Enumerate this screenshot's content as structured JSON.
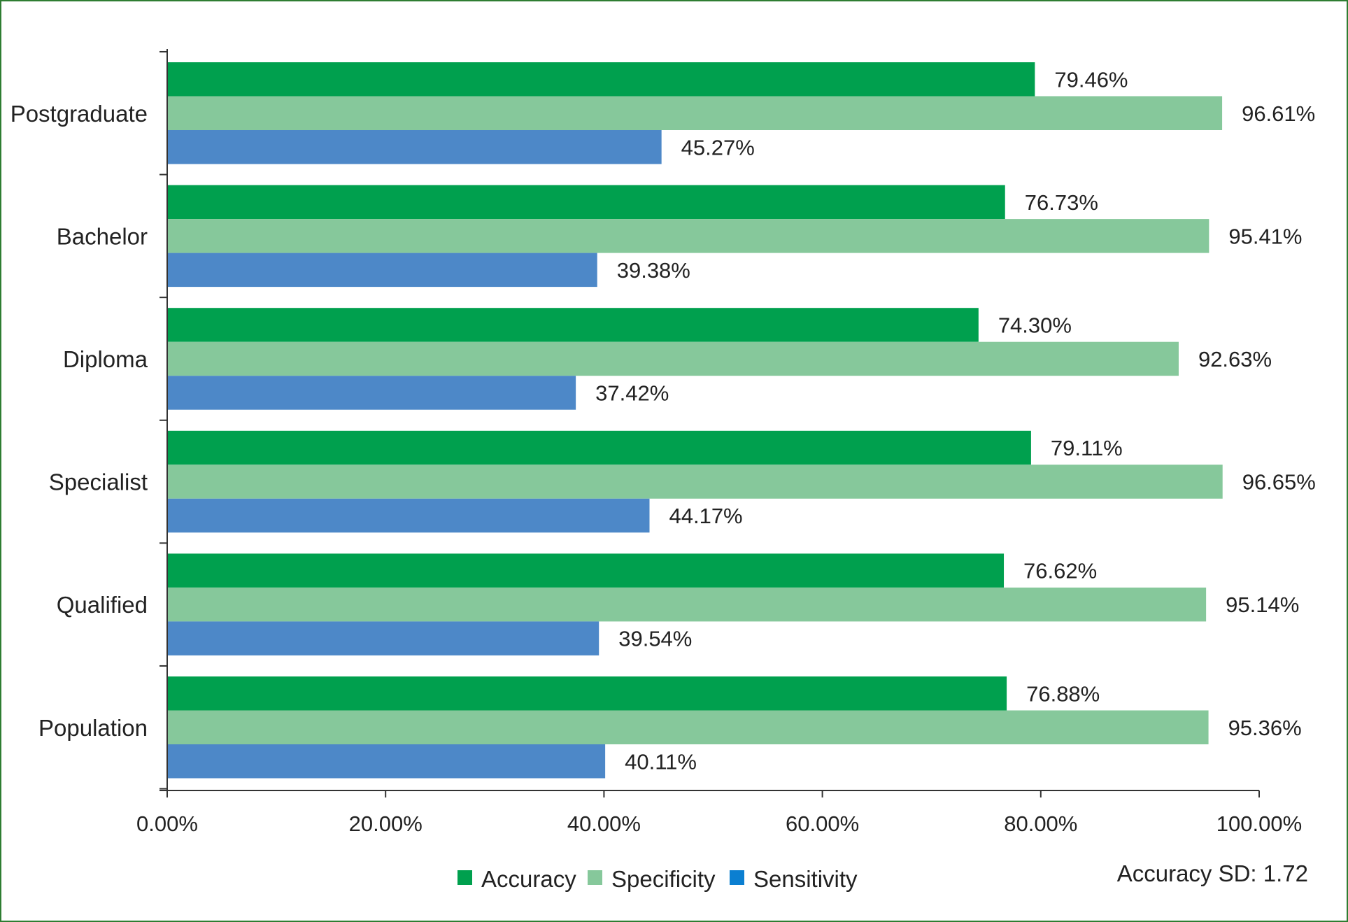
{
  "chart_data": {
    "type": "bar",
    "orientation": "horizontal",
    "categories": [
      "Postgraduate",
      "Bachelor",
      "Diploma",
      "Specialist",
      "Qualified",
      "Population"
    ],
    "series": [
      {
        "name": "Accuracy",
        "color": "#00a04e",
        "values": [
          79.46,
          76.73,
          74.3,
          79.11,
          76.62,
          76.88
        ]
      },
      {
        "name": "Specificity",
        "color": "#86c89b",
        "values": [
          96.61,
          95.41,
          92.63,
          96.65,
          95.14,
          95.36
        ]
      },
      {
        "name": "Sensitivity",
        "color": "#4d88c8",
        "values": [
          45.27,
          39.38,
          37.42,
          44.17,
          39.54,
          40.11
        ]
      }
    ],
    "data_labels": [
      [
        "79.46%",
        "96.61%",
        "45.27%"
      ],
      [
        "76.73%",
        "95.41%",
        "39.38%"
      ],
      [
        "74.30%",
        "92.63%",
        "37.42%"
      ],
      [
        "79.11%",
        "96.65%",
        "44.17%"
      ],
      [
        "76.62%",
        "95.14%",
        "39.54%"
      ],
      [
        "76.88%",
        "95.36%",
        "40.11%"
      ]
    ],
    "xlim": [
      0,
      100
    ],
    "xticks": [
      0,
      20,
      40,
      60,
      80,
      100
    ],
    "xtick_labels": [
      "0.00%",
      "20.00%",
      "40.00%",
      "60.00%",
      "80.00%",
      "100.00%"
    ],
    "legend_position": "bottom-center",
    "legend_marker_colors": [
      "#00a04e",
      "#86c89b",
      "#0b7fd1"
    ],
    "grid": false
  },
  "note": "Accuracy SD: 1.72"
}
